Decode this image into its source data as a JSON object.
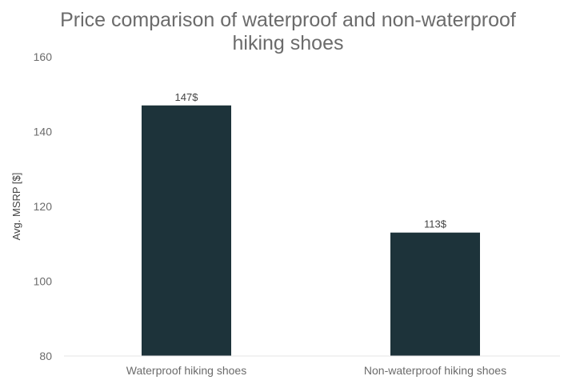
{
  "chart_data": {
    "type": "bar",
    "title_lines": [
      "Price comparison of waterproof and non-waterproof",
      "hiking shoes"
    ],
    "ylabel": "Avg. MSRP [$]",
    "xlabel": "",
    "categories": [
      "Waterproof hiking shoes",
      "Non-waterproof hiking shoes"
    ],
    "values": [
      147,
      113
    ],
    "data_labels": [
      "147$",
      "113$"
    ],
    "ylim": [
      80,
      160
    ],
    "yticks": [
      80,
      100,
      120,
      140,
      160
    ],
    "grid": false,
    "bar_color": "#1d333a",
    "axis_color": "#e6e6e6"
  }
}
